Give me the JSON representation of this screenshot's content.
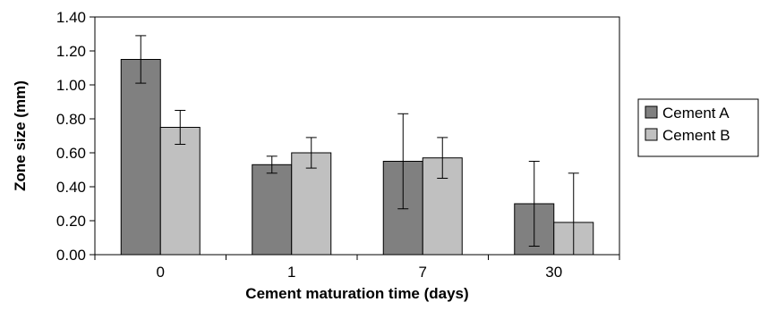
{
  "chart_data": {
    "type": "bar",
    "title": "",
    "xlabel": "Cement maturation time (days)",
    "ylabel": "Zone size (mm)",
    "categories": [
      "0",
      "1",
      "7",
      "30"
    ],
    "ylim": [
      0,
      1.4
    ],
    "yticks": [
      "0.00",
      "0.20",
      "0.40",
      "0.60",
      "0.80",
      "1.00",
      "1.20",
      "1.40"
    ],
    "grid": false,
    "legend_position": "right",
    "series": [
      {
        "name": "Cement A",
        "color": "#808080",
        "values": [
          1.15,
          0.53,
          0.55,
          0.3
        ],
        "error": [
          0.14,
          0.05,
          0.28,
          0.25
        ]
      },
      {
        "name": "Cement B",
        "color": "#c0c0c0",
        "values": [
          0.75,
          0.6,
          0.57,
          0.19
        ],
        "error": [
          0.1,
          0.09,
          0.12,
          0.29
        ]
      }
    ]
  }
}
